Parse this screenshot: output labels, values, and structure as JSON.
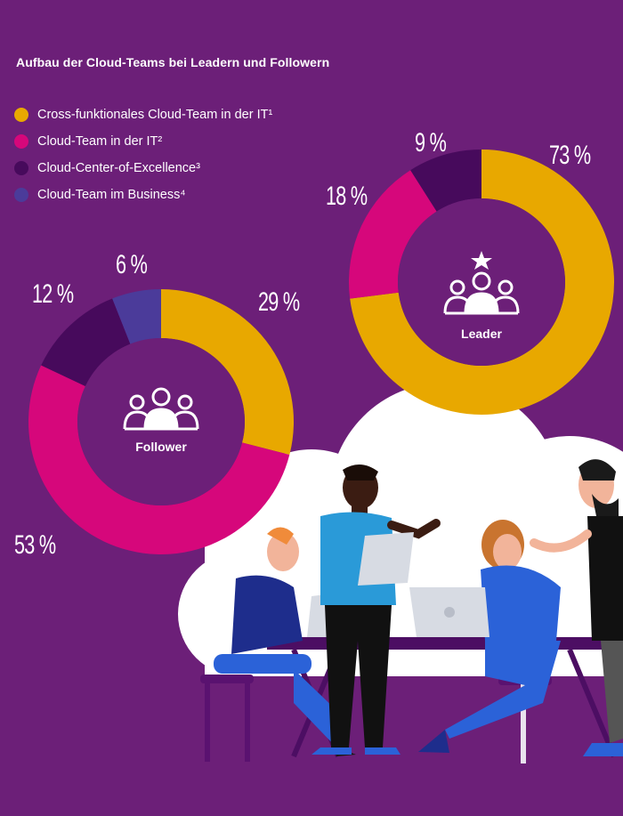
{
  "chart_data": [
    {
      "type": "donut",
      "title": "Aufbau der Cloud-Teams bei Leadern und Followern",
      "center_label": "Leader",
      "center_icon": "team-star-icon",
      "categories": [
        "Cross-funktionales Cloud-Team in der IT¹",
        "Cloud-Team in der IT²",
        "Cloud-Center-of-Excellence³",
        "Cloud-Team im Business⁴"
      ],
      "values": [
        73,
        18,
        9,
        0
      ],
      "labels": [
        "73 %",
        "18 %",
        "9 %"
      ],
      "unit": "%"
    },
    {
      "type": "donut",
      "center_label": "Follower",
      "center_icon": "team-icon",
      "categories": [
        "Cross-funktionales Cloud-Team in der IT¹",
        "Cloud-Team in der IT²",
        "Cloud-Center-of-Excellence³",
        "Cloud-Team im Business⁴"
      ],
      "values": [
        29,
        53,
        12,
        6
      ],
      "labels": [
        "29 %",
        "53 %",
        "12 %",
        "6 %"
      ],
      "unit": "%"
    }
  ],
  "legend": [
    {
      "label": "Cross-funktionales Cloud-Team in der IT¹",
      "color": "#e8a800"
    },
    {
      "label": "Cloud-Team in der IT²",
      "color": "#d6077b"
    },
    {
      "label": "Cloud-Center-of-Excellence³",
      "color": "#470a5c"
    },
    {
      "label": "Cloud-Team im Business⁴",
      "color": "#4b3b9a"
    }
  ],
  "colors": {
    "background": "#6c1f78",
    "illustration_cloud": "#ffffff",
    "table": "#4c0e63"
  }
}
